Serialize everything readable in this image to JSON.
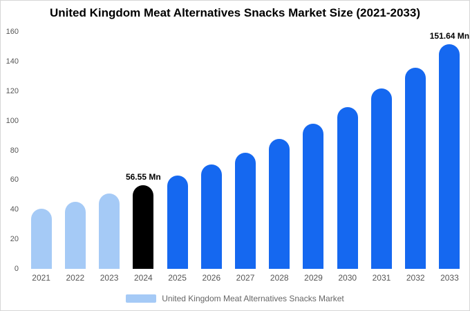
{
  "title": "United Kingdom Meat Alternatives Snacks Market Size (2021-2033)",
  "legend": {
    "label": "United Kingdom Meat Alternatives Snacks Market",
    "swatch_color": "#a5caf6"
  },
  "colors": {
    "historical": "#a5caf6",
    "highlight": "#000000",
    "forecast": "#1568f0"
  },
  "chart_data": {
    "type": "bar",
    "title": "United Kingdom Meat Alternatives Snacks Market Size (2021-2033)",
    "categories": [
      "2021",
      "2022",
      "2023",
      "2024",
      "2025",
      "2026",
      "2027",
      "2028",
      "2029",
      "2030",
      "2031",
      "2032",
      "2033"
    ],
    "values": [
      40.7,
      45.4,
      50.7,
      56.55,
      63.1,
      70.4,
      78.6,
      87.7,
      97.8,
      109.1,
      121.8,
      135.9,
      151.64
    ],
    "bar_colors": [
      "#a5caf6",
      "#a5caf6",
      "#a5caf6",
      "#000000",
      "#1568f0",
      "#1568f0",
      "#1568f0",
      "#1568f0",
      "#1568f0",
      "#1568f0",
      "#1568f0",
      "#1568f0",
      "#1568f0"
    ],
    "data_labels": [
      "",
      "",
      "",
      "56.55 Mn",
      "",
      "",
      "",
      "",
      "",
      "",
      "",
      "",
      "151.64 Mn"
    ],
    "xlabel": "",
    "ylabel": "",
    "ylim": [
      0,
      160
    ],
    "yticks": [
      0,
      20,
      40,
      60,
      80,
      100,
      120,
      140,
      160
    ],
    "grid": false,
    "legend_position": "bottom",
    "legend_entries": [
      "United Kingdom Meat Alternatives Snacks Market"
    ]
  }
}
